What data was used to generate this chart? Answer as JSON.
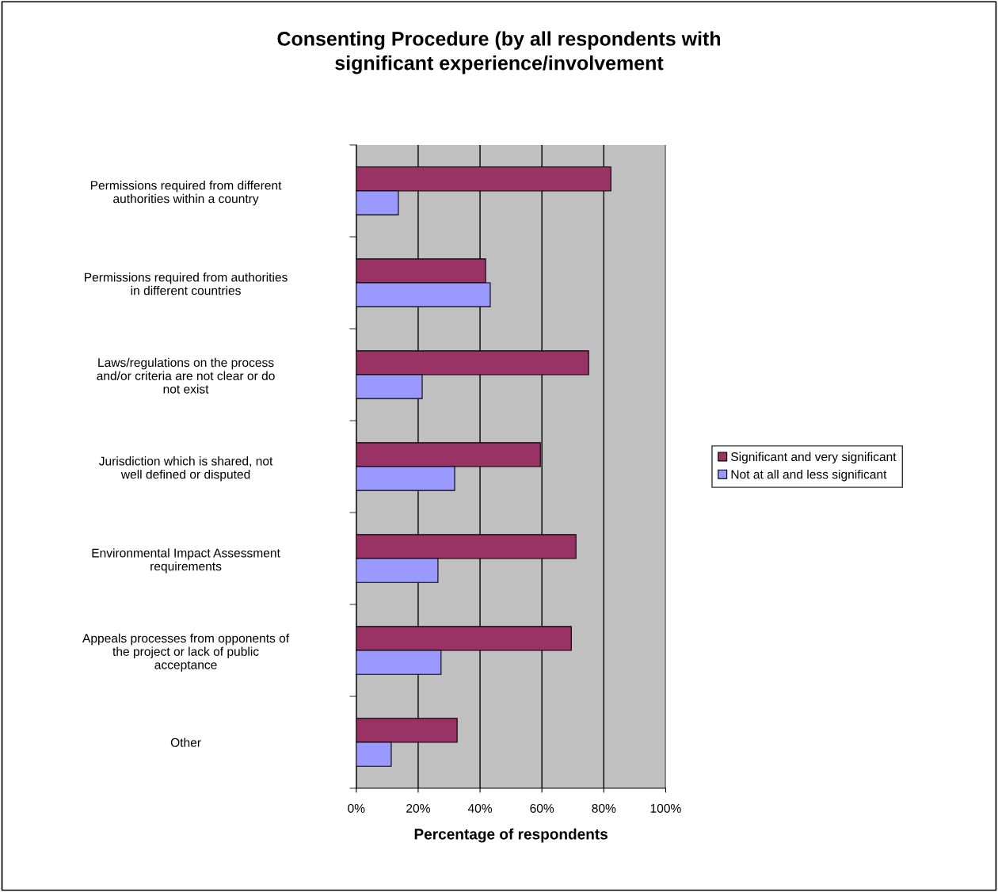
{
  "chart_data": {
    "type": "bar",
    "orientation": "horizontal",
    "title": "Consenting Procedure (by all respondents with significant experience/involvement",
    "xlabel": "Percentage of respondents",
    "categories": [
      "Permissions required from different authorities within a country",
      "Permissions required from authorities in different countries",
      "Laws/regulations on the process and/or criteria are not clear or do not exist",
      "Jurisdiction which is shared, not well defined or disputed",
      "Environmental Impact Assessment requirements",
      "Appeals processes from opponents of the project or lack of public acceptance",
      "Other"
    ],
    "series": [
      {
        "name": "Significant and very significant",
        "color": "#993366",
        "values": [
          82.3,
          41.8,
          75.1,
          59.5,
          71.0,
          69.5,
          32.6
        ]
      },
      {
        "name": "Not at all and less significant",
        "color": "#9999ff",
        "values": [
          13.6,
          43.3,
          21.3,
          31.8,
          26.4,
          27.4,
          11.3
        ]
      }
    ],
    "xlim": [
      0,
      100
    ],
    "xticks": [
      {
        "value": 0,
        "label": "0%"
      },
      {
        "value": 20,
        "label": "20%"
      },
      {
        "value": 40,
        "label": "40%"
      },
      {
        "value": 60,
        "label": "60%"
      },
      {
        "value": 80,
        "label": "80%"
      },
      {
        "value": 100,
        "label": "100%"
      }
    ],
    "grid": "x",
    "legend": "right"
  }
}
